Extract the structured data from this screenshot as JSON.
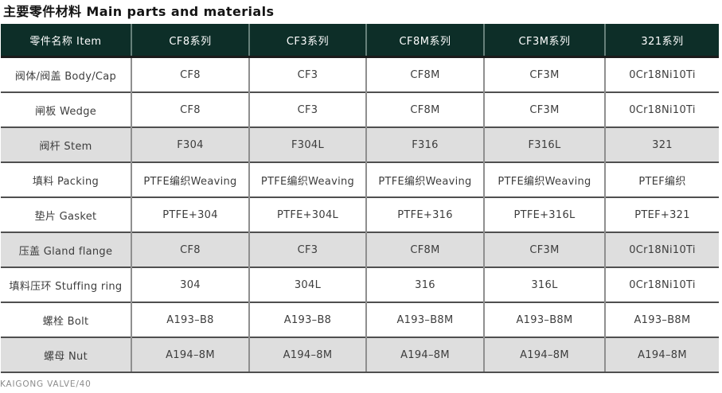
{
  "page": {
    "title": "主要零件材料 Main parts and materials",
    "footer": "KAIGONG VALVE/40"
  },
  "colors": {
    "header_bg": "#0d2e28",
    "header_text": "#ffffff",
    "header_divider": "#66807a",
    "row_bg": "#ffffff",
    "row_alt_bg": "#dedede",
    "row_border": "#4f4f4f",
    "col_divider": "#8f8f8f",
    "body_text": "#3d3d3d",
    "footer_text": "#8c8c8c"
  },
  "table": {
    "columns": [
      "零件名称 Item",
      "CF8系列",
      "CF3系列",
      "CF8M系列",
      "CF3M系列",
      "321系列"
    ],
    "rows": [
      {
        "item": "阀体/阀盖 Body/Cap",
        "values": [
          "CF8",
          "CF3",
          "CF8M",
          "CF3M",
          "0Cr18Ni10Ti"
        ],
        "shaded": false
      },
      {
        "item": "闸板 Wedge",
        "values": [
          "CF8",
          "CF3",
          "CF8M",
          "CF3M",
          "0Cr18Ni10Ti"
        ],
        "shaded": false
      },
      {
        "item": "阀杆 Stem",
        "values": [
          "F304",
          "F304L",
          "F316",
          "F316L",
          "321"
        ],
        "shaded": true
      },
      {
        "item": "填料 Packing",
        "values": [
          "PTFE编织Weaving",
          "PTFE编织Weaving",
          "PTFE编织Weaving",
          "PTFE编织Weaving",
          "PTEF编织"
        ],
        "shaded": false
      },
      {
        "item": "垫片 Gasket",
        "values": [
          "PTFE+304",
          "PTFE+304L",
          "PTFE+316",
          "PTFE+316L",
          "PTEF+321"
        ],
        "shaded": false
      },
      {
        "item": "压盖 Gland flange",
        "values": [
          "CF8",
          "CF3",
          "CF8M",
          "CF3M",
          "0Cr18Ni10Ti"
        ],
        "shaded": true
      },
      {
        "item": "填料压环 Stuffing ring",
        "values": [
          "304",
          "304L",
          "316",
          "316L",
          "0Cr18Ni10Ti"
        ],
        "shaded": false
      },
      {
        "item": "螺栓 Bolt",
        "values": [
          "A193–B8",
          "A193–B8",
          "A193–B8M",
          "A193–B8M",
          "A193–B8M"
        ],
        "shaded": false
      },
      {
        "item": "螺母 Nut",
        "values": [
          "A194–8M",
          "A194–8M",
          "A194–8M",
          "A194–8M",
          "A194–8M"
        ],
        "shaded": true
      }
    ]
  }
}
